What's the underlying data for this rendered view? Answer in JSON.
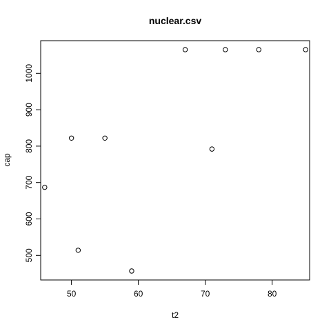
{
  "chart_data": {
    "type": "scatter",
    "title": "nuclear.csv",
    "xlabel": "t2",
    "ylabel": "cap",
    "xlim": [
      45.4,
      85.6
    ],
    "ylim": [
      432.4,
      1089.6
    ],
    "grid": false,
    "x_ticks": [
      "50",
      "60",
      "70",
      "80"
    ],
    "y_ticks": [
      "500",
      "600",
      "700",
      "800",
      "900",
      "1000"
    ],
    "points": [
      {
        "x": 46,
        "y": 687
      },
      {
        "x": 50,
        "y": 822
      },
      {
        "x": 51,
        "y": 514
      },
      {
        "x": 55,
        "y": 822
      },
      {
        "x": 59,
        "y": 457
      },
      {
        "x": 67,
        "y": 1065
      },
      {
        "x": 71,
        "y": 792
      },
      {
        "x": 73,
        "y": 1065
      },
      {
        "x": 78,
        "y": 1065
      },
      {
        "x": 85,
        "y": 1065
      }
    ]
  }
}
